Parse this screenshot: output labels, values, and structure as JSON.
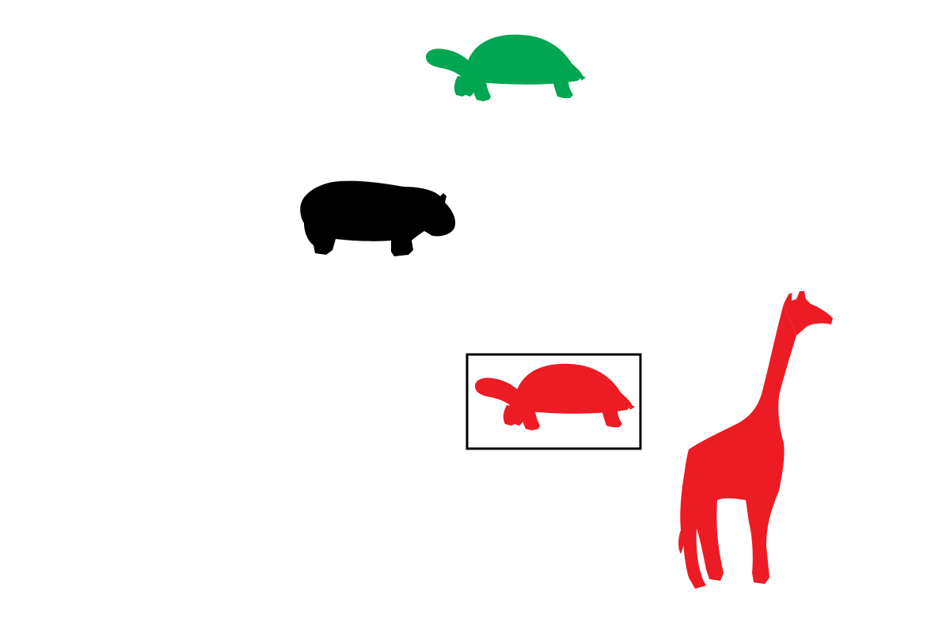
{
  "scene": {
    "background": "#ffffff",
    "objects": [
      {
        "name": "green-turtle",
        "animal": "turtle",
        "color": "#00a651",
        "highlighted": false
      },
      {
        "name": "black-hippo",
        "animal": "hippo",
        "color": "#000000",
        "highlighted": false
      },
      {
        "name": "red-turtle",
        "animal": "turtle",
        "color": "#ed1c24",
        "highlighted": true
      },
      {
        "name": "red-giraffe",
        "animal": "giraffe",
        "color": "#ed1c24",
        "highlighted": false
      }
    ],
    "highlight_box": {
      "stroke": "#000000",
      "target": "red-turtle"
    }
  }
}
